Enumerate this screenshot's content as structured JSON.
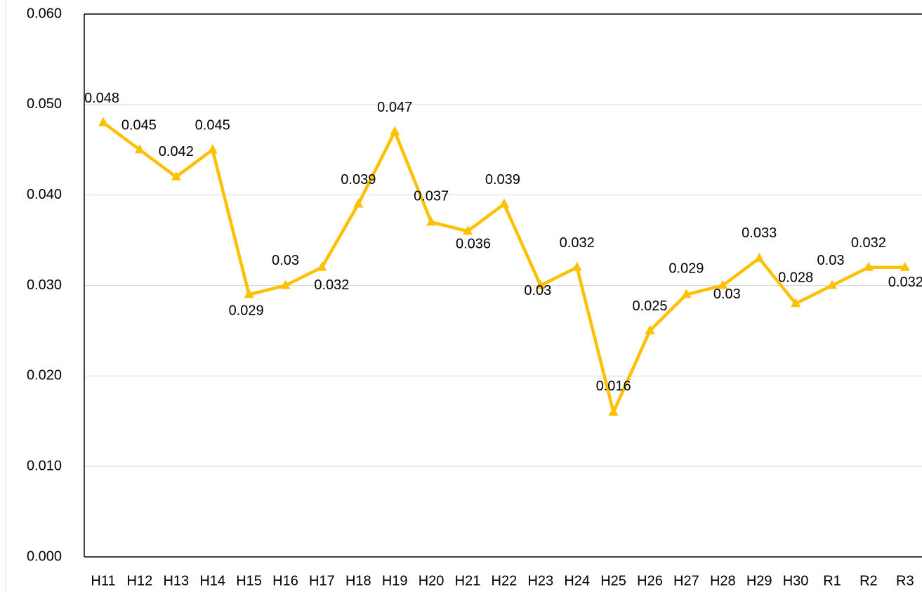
{
  "chart_data": {
    "type": "line",
    "categories": [
      "H11",
      "H12",
      "H13",
      "H14",
      "H15",
      "H16",
      "H17",
      "H18",
      "H19",
      "H20",
      "H21",
      "H22",
      "H23",
      "H24",
      "H25",
      "H26",
      "H27",
      "H28",
      "H29",
      "H30",
      "R1",
      "R2",
      "R3"
    ],
    "series": [
      {
        "color": "#FFC000",
        "values": [
          0.048,
          0.045,
          0.042,
          0.045,
          0.029,
          0.03,
          0.032,
          0.039,
          0.047,
          0.037,
          0.036,
          0.039,
          0.03,
          0.032,
          0.016,
          0.025,
          0.029,
          0.03,
          0.033,
          0.028,
          0.03,
          0.032,
          0.032
        ]
      }
    ],
    "ylim": [
      0,
      0.06
    ],
    "yticks": [
      {
        "value": 0,
        "label": "0.000"
      },
      {
        "value": 0.01,
        "label": "0.010"
      },
      {
        "value": 0.02,
        "label": "0.020"
      },
      {
        "value": 0.03,
        "label": "0.030"
      },
      {
        "value": 0.04,
        "label": "0.040"
      },
      {
        "value": 0.05,
        "label": "0.050"
      },
      {
        "value": 0.06,
        "label": "0.060"
      }
    ],
    "grid": true
  }
}
